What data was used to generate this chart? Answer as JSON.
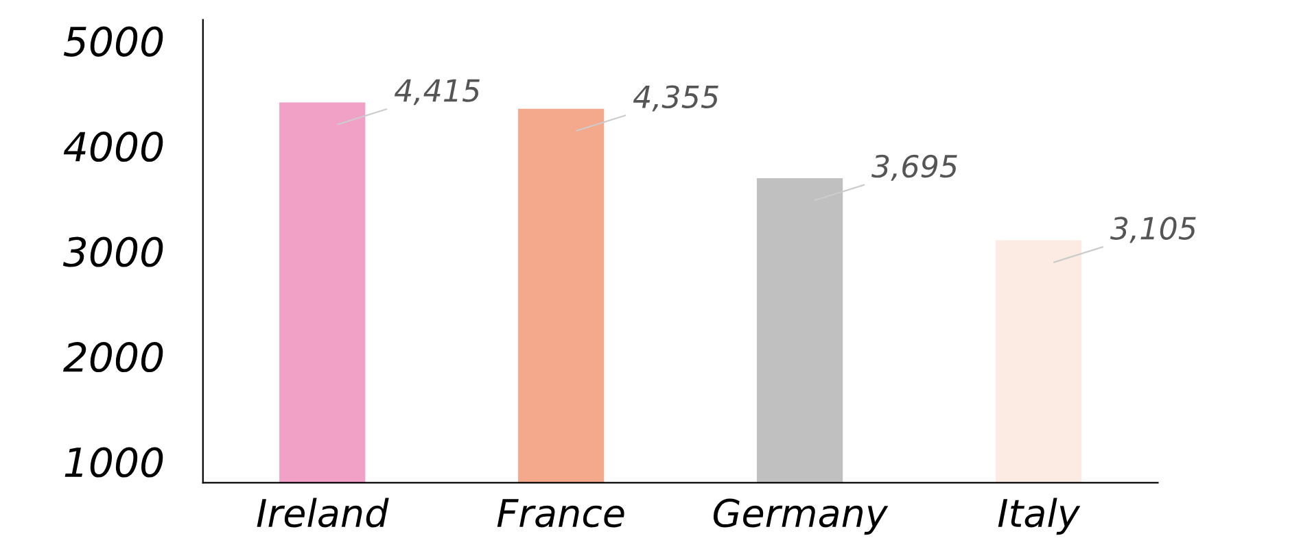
{
  "chart_data": {
    "type": "bar",
    "categories": [
      "Ireland",
      "France",
      "Germany",
      "Italy"
    ],
    "values": [
      4415,
      4355,
      3695,
      3105
    ],
    "colors": [
      "#f0a1c5",
      "#f4a98d",
      "#c0c0c0",
      "#fcebe2"
    ],
    "ylim": [
      800,
      5200
    ],
    "yticks": [
      1000,
      2000,
      3000,
      4000,
      5000
    ],
    "value_labels": [
      "4,415",
      "4,355",
      "3,695",
      "3,105"
    ],
    "grid": false
  }
}
